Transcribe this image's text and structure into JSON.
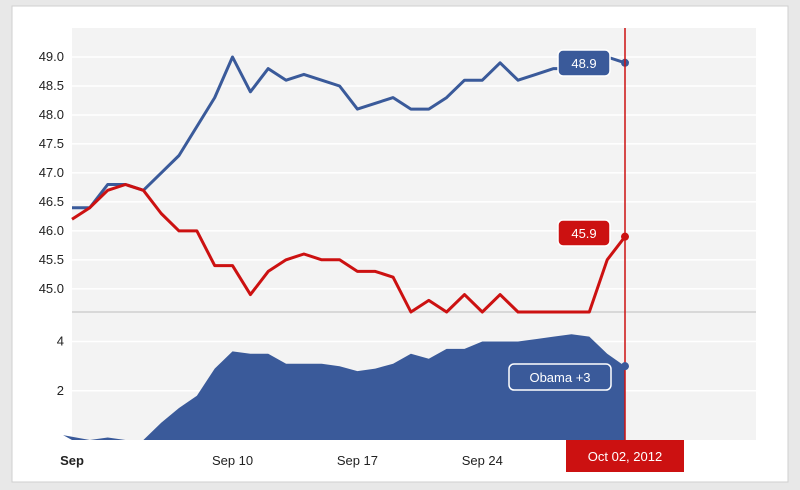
{
  "colors": {
    "obama": "#3a5a9a",
    "romney": "#cc1111",
    "cursor": "#cc1111",
    "lower_fill": "#3a5a9a"
  },
  "chart_data": [
    {
      "type": "line",
      "title": "",
      "xlabel": "",
      "ylabel": "",
      "x_axis_labels": [
        "Sep",
        "Sep 10",
        "Sep 17",
        "Sep 24",
        "Oct"
      ],
      "x_axis_label_days": [
        1,
        10,
        17,
        24,
        32
      ],
      "ylim": [
        44.6,
        49.5
      ],
      "yticks": [
        "45.0",
        "45.5",
        "46.0",
        "46.5",
        "47.0",
        "47.5",
        "48.0",
        "48.5",
        "49.0"
      ],
      "grid": true,
      "series": [
        {
          "key": "obama",
          "x": [
            1,
            2,
            3,
            4,
            5,
            6,
            7,
            8,
            9,
            10,
            11,
            12,
            13,
            14,
            15,
            16,
            17,
            18,
            19,
            20,
            21,
            22,
            23,
            24,
            25,
            26,
            27,
            28,
            29,
            30,
            31,
            32
          ],
          "values": [
            46.4,
            46.4,
            46.8,
            46.8,
            46.7,
            47.0,
            47.3,
            47.8,
            48.3,
            49.0,
            48.4,
            48.8,
            48.6,
            48.7,
            48.6,
            48.5,
            48.1,
            48.2,
            48.3,
            48.1,
            48.1,
            48.3,
            48.6,
            48.6,
            48.9,
            48.6,
            48.7,
            48.8,
            48.8,
            48.9,
            49.0,
            48.9
          ]
        },
        {
          "key": "romney",
          "x": [
            1,
            2,
            3,
            4,
            5,
            6,
            7,
            8,
            9,
            10,
            11,
            12,
            13,
            14,
            15,
            16,
            17,
            18,
            19,
            20,
            21,
            22,
            23,
            24,
            25,
            26,
            27,
            28,
            29,
            30,
            31,
            32
          ],
          "values": [
            46.2,
            46.4,
            46.7,
            46.8,
            46.7,
            46.3,
            46.0,
            46.0,
            45.4,
            45.4,
            44.9,
            45.3,
            45.5,
            45.6,
            45.5,
            45.5,
            45.3,
            45.3,
            45.2,
            44.6,
            44.8,
            44.6,
            44.9,
            44.6,
            44.9,
            44.6,
            44.6,
            44.6,
            44.6,
            44.6,
            45.5,
            45.9
          ]
        }
      ],
      "end_labels": {
        "obama": "48.9",
        "romney": "45.9"
      },
      "cursor_label": "Oct 02, 2012",
      "cursor_day": 32
    },
    {
      "type": "area",
      "title": "",
      "ylim": [
        0,
        5.2
      ],
      "yticks": [
        "2",
        "4"
      ],
      "series": [
        {
          "key": "spread",
          "x": [
            0.5,
            2,
            3,
            4,
            5,
            6,
            7,
            8,
            9,
            10,
            11,
            12,
            13,
            14,
            15,
            16,
            17,
            18,
            19,
            20,
            21,
            22,
            23,
            24,
            25,
            26,
            27,
            28,
            29,
            30,
            31,
            32
          ],
          "values": [
            0.2,
            0.0,
            0.1,
            0.0,
            0.0,
            0.7,
            1.3,
            1.8,
            2.9,
            3.6,
            3.5,
            3.5,
            3.1,
            3.1,
            3.1,
            3.0,
            2.8,
            2.9,
            3.1,
            3.5,
            3.3,
            3.7,
            3.7,
            4.0,
            4.0,
            4.0,
            4.1,
            4.2,
            4.3,
            4.2,
            3.5,
            3.0
          ]
        }
      ],
      "end_label": "Obama +3"
    }
  ]
}
